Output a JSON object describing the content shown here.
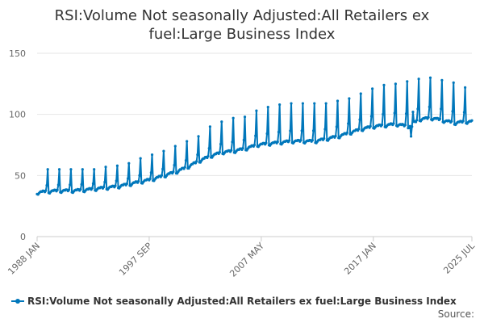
{
  "chart_data": {
    "type": "line",
    "title_lines": [
      "RSI:Volume Not seasonally Adjusted:All Retailers ex",
      "fuel:Large Business Index"
    ],
    "xlabel": "",
    "ylabel": "",
    "x_tick_labels": [
      "1988 JAN",
      "1997 SEP",
      "2007 MAY",
      "2017 JAN",
      "2025 JUL"
    ],
    "x_range": [
      "1988-01",
      "2025-07"
    ],
    "ylim": [
      0,
      150
    ],
    "y_ticks": [
      0,
      50,
      100,
      150
    ],
    "grid": "horizontal",
    "legend_position": "bottom",
    "series": [
      {
        "name": "RSI:Volume Not seasonally Adjusted:All Retailers ex fuel:Large Business Index",
        "color": "#0077bb",
        "baseline_by_year": {
          "1988": 36,
          "1989": 37,
          "1990": 37.5,
          "1991": 37.5,
          "1992": 38,
          "1993": 39,
          "1994": 40,
          "1995": 41,
          "1996": 43,
          "1997": 45,
          "1998": 47,
          "1999": 50,
          "2000": 53,
          "2001": 57,
          "2002": 62,
          "2003": 66,
          "2004": 69,
          "2005": 70,
          "2006": 72,
          "2007": 75,
          "2008": 76,
          "2009": 77,
          "2010": 78,
          "2011": 78,
          "2012": 78,
          "2013": 80,
          "2014": 82,
          "2015": 85,
          "2016": 88,
          "2017": 90,
          "2018": 91,
          "2019": 92,
          "2020": 90,
          "2021": 96,
          "2022": 97,
          "2023": 95,
          "2024": 93,
          "2025": 94
        },
        "december_peak_by_year": {
          "1988": 55,
          "1989": 55,
          "1990": 55,
          "1991": 55,
          "1992": 55,
          "1993": 57,
          "1994": 58,
          "1995": 60,
          "1996": 64,
          "1997": 67,
          "1998": 70,
          "1999": 74,
          "2000": 78,
          "2001": 82,
          "2002": 90,
          "2003": 94,
          "2004": 97,
          "2005": 98,
          "2006": 103,
          "2007": 106,
          "2008": 108,
          "2009": 109,
          "2010": 109,
          "2011": 109,
          "2012": 109,
          "2013": 111,
          "2014": 113,
          "2015": 117,
          "2016": 121,
          "2017": 124,
          "2018": 125,
          "2019": 127,
          "2020": 129,
          "2021": 130,
          "2022": 128,
          "2023": 126,
          "2024": 122
        },
        "april_2020": 82,
        "may_2020": 90,
        "jun_2020": 102
      }
    ]
  },
  "source_label": "Source:"
}
